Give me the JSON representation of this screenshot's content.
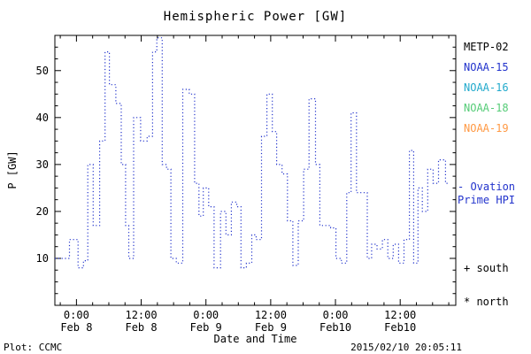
{
  "chart_data": {
    "type": "line",
    "title": "Hemispheric Power [GW]",
    "xlabel": "Date and Time",
    "ylabel": "P [GW]",
    "ylim": [
      0,
      57.5
    ],
    "x_hours_range": [
      -4,
      70.3
    ],
    "y_ticks": [
      10,
      20,
      30,
      40,
      50
    ],
    "x_ticks": [
      {
        "hours": 0,
        "time": "0:00",
        "date": "Feb 8"
      },
      {
        "hours": 12,
        "time": "12:00",
        "date": "Feb 8"
      },
      {
        "hours": 24,
        "time": "0:00",
        "date": "Feb 9"
      },
      {
        "hours": 36,
        "time": "12:00",
        "date": "Feb 9"
      },
      {
        "hours": 48,
        "time": "0:00",
        "date": "Feb10"
      },
      {
        "hours": 60,
        "time": "12:00",
        "date": "Feb10"
      }
    ],
    "grid": false,
    "line_color": "#2233cc",
    "line_style": "dotted-step",
    "series": [
      {
        "name": "Ovation Prime HPI",
        "points": [
          [
            -4.0,
            10
          ],
          [
            -1.3,
            14
          ],
          [
            0.3,
            8
          ],
          [
            1.3,
            9.5
          ],
          [
            2.1,
            30
          ],
          [
            3.1,
            17
          ],
          [
            4.3,
            35
          ],
          [
            5.3,
            54
          ],
          [
            6.1,
            47
          ],
          [
            7.3,
            43
          ],
          [
            8.3,
            30
          ],
          [
            9.1,
            17
          ],
          [
            9.7,
            10
          ],
          [
            10.6,
            40
          ],
          [
            11.9,
            35
          ],
          [
            13.1,
            36
          ],
          [
            14.1,
            54
          ],
          [
            14.9,
            57
          ],
          [
            15.9,
            30
          ],
          [
            16.7,
            29
          ],
          [
            17.5,
            10
          ],
          [
            18.5,
            9
          ],
          [
            19.7,
            46
          ],
          [
            20.9,
            45
          ],
          [
            21.9,
            26
          ],
          [
            22.7,
            19
          ],
          [
            23.5,
            25
          ],
          [
            24.5,
            21
          ],
          [
            25.5,
            8
          ],
          [
            26.7,
            20
          ],
          [
            27.7,
            15
          ],
          [
            28.7,
            22
          ],
          [
            29.7,
            21
          ],
          [
            30.5,
            8
          ],
          [
            31.5,
            9
          ],
          [
            32.5,
            15
          ],
          [
            33.3,
            14
          ],
          [
            34.3,
            36
          ],
          [
            35.3,
            45
          ],
          [
            36.3,
            37
          ],
          [
            37.1,
            30
          ],
          [
            38.1,
            28
          ],
          [
            39.1,
            18
          ],
          [
            40.1,
            8.5
          ],
          [
            41.1,
            18
          ],
          [
            42.1,
            29
          ],
          [
            43.1,
            44
          ],
          [
            44.3,
            30
          ],
          [
            45.1,
            17
          ],
          [
            47.1,
            16.5
          ],
          [
            48.1,
            10
          ],
          [
            49.1,
            9
          ],
          [
            50.1,
            24
          ],
          [
            50.9,
            41
          ],
          [
            51.9,
            24
          ],
          [
            53.9,
            10
          ],
          [
            54.7,
            13
          ],
          [
            55.7,
            12
          ],
          [
            56.7,
            14
          ],
          [
            57.7,
            10
          ],
          [
            58.7,
            13
          ],
          [
            59.7,
            9
          ],
          [
            60.7,
            14
          ],
          [
            61.7,
            33
          ],
          [
            62.5,
            9
          ],
          [
            63.3,
            25
          ],
          [
            64.1,
            20
          ],
          [
            65.1,
            29
          ],
          [
            66.1,
            26
          ],
          [
            67.1,
            31
          ],
          [
            68.4,
            26
          ]
        ]
      }
    ]
  },
  "legend": {
    "satellites": [
      {
        "name": "METP-02",
        "color": "#000000"
      },
      {
        "name": "NOAA-15",
        "color": "#2233cc"
      },
      {
        "name": "NOAA-16",
        "color": "#22aacc"
      },
      {
        "name": "NOAA-18",
        "color": "#55cc77"
      },
      {
        "name": "NOAA-19",
        "color": "#ff9944"
      }
    ],
    "ovation": {
      "label": "- Ovation\nPrime HPI",
      "color": "#2233cc"
    },
    "south_label": "+ south",
    "north_label": "* north"
  },
  "footer": {
    "source": "Plot: CCMC",
    "timestamp": "2015/02/10 20:05:11"
  }
}
